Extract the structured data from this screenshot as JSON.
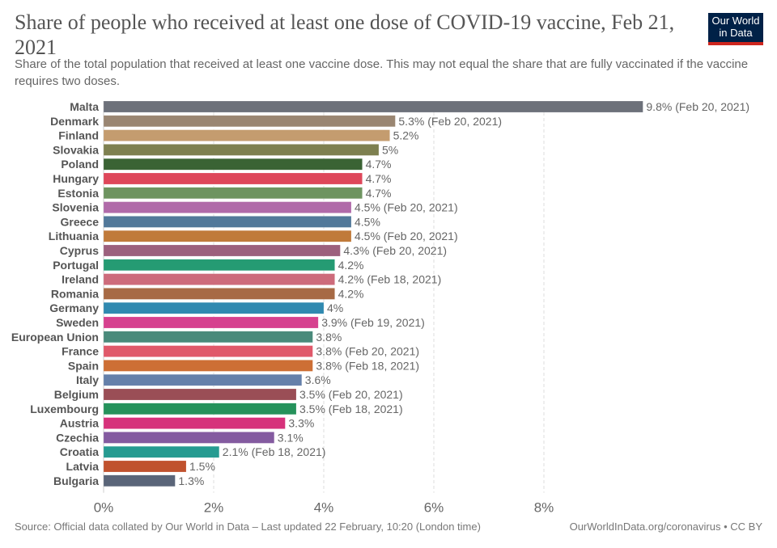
{
  "header": {
    "title": "Share of people who received at least one dose of COVID-19 vaccine, Feb 21, 2021",
    "subtitle": "Share of the total population that received at least one vaccine dose. This may not equal the share that are fully vaccinated if the vaccine requires two doses.",
    "logo_line1": "Our World",
    "logo_line2": "in Data"
  },
  "footer": {
    "source": "Source: Official data collated by Our World in Data – Last updated 22 February, 10:20 (London time)",
    "url": "OurWorldInData.org/coronavirus • CC BY"
  },
  "chart_data": {
    "type": "bar",
    "orientation": "horizontal",
    "title": "Share of people who received at least one dose of COVID-19 vaccine, Feb 21, 2021",
    "xlabel": "",
    "ylabel": "",
    "xlim": [
      0,
      10
    ],
    "grid": true,
    "x_ticks": [
      0,
      2,
      4,
      6,
      8
    ],
    "x_tick_labels": [
      "0%",
      "2%",
      "4%",
      "6%",
      "8%"
    ],
    "categories": [
      "Malta",
      "Denmark",
      "Finland",
      "Slovakia",
      "Poland",
      "Hungary",
      "Estonia",
      "Slovenia",
      "Greece",
      "Lithuania",
      "Cyprus",
      "Portugal",
      "Ireland",
      "Romania",
      "Germany",
      "Sweden",
      "European Union",
      "France",
      "Spain",
      "Italy",
      "Belgium",
      "Luxembourg",
      "Austria",
      "Czechia",
      "Croatia",
      "Latvia",
      "Bulgaria"
    ],
    "values": [
      9.8,
      5.3,
      5.2,
      5.0,
      4.7,
      4.7,
      4.7,
      4.5,
      4.5,
      4.5,
      4.3,
      4.2,
      4.2,
      4.2,
      4.0,
      3.9,
      3.8,
      3.8,
      3.8,
      3.6,
      3.5,
      3.5,
      3.3,
      3.1,
      2.1,
      1.5,
      1.3
    ],
    "labels": [
      "9.8% (Feb 20, 2021)",
      "5.3% (Feb 20, 2021)",
      "5.2%",
      "5%",
      "4.7%",
      "4.7%",
      "4.7%",
      "4.5% (Feb 20, 2021)",
      "4.5%",
      "4.5% (Feb 20, 2021)",
      "4.3% (Feb 20, 2021)",
      "4.2%",
      "4.2% (Feb 18, 2021)",
      "4.2%",
      "4%",
      "3.9% (Feb 19, 2021)",
      "3.8%",
      "3.8% (Feb 20, 2021)",
      "3.8% (Feb 18, 2021)",
      "3.6%",
      "3.5% (Feb 20, 2021)",
      "3.5% (Feb 18, 2021)",
      "3.3%",
      "3.1%",
      "2.1% (Feb 18, 2021)",
      "1.5%",
      "1.3%"
    ],
    "colors": [
      "#6d717a",
      "#9a8672",
      "#c49c6f",
      "#7e8050",
      "#3a6334",
      "#de475a",
      "#6e9460",
      "#b06aa9",
      "#52799a",
      "#c07a3a",
      "#9c607d",
      "#259b73",
      "#cd6b7b",
      "#a76a45",
      "#3089b0",
      "#d6418f",
      "#4a8a7b",
      "#e0596a",
      "#cd6f35",
      "#6580aa",
      "#9a4e56",
      "#25925b",
      "#d6327b",
      "#845ba0",
      "#269b91",
      "#c0522e",
      "#5a6579"
    ]
  }
}
